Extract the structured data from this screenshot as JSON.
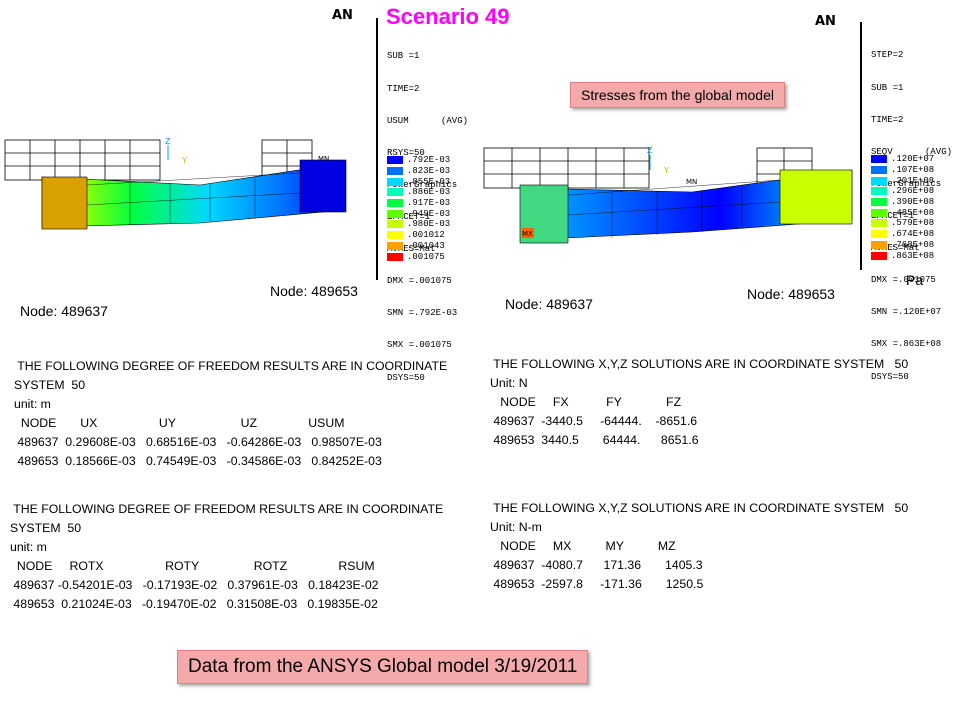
{
  "title": "Scenario 49",
  "left_plot": {
    "header_mark": "AN",
    "legend_lines": [
      "SUB =1",
      "TIME=2",
      "USUM      (AVG)",
      "RSYS=50",
      "PowerGraphics",
      "EFACET=1",
      "AVRES=Mat",
      "DMX =.001075",
      "SMN =.792E-03",
      "SMX =.001075",
      "DSYS=50"
    ],
    "scale": [
      ".792E-03",
      ".823E-03",
      ".855E-03",
      ".886E-03",
      ".917E-03",
      ".949E-03",
      ".980E-03",
      ".001012",
      ".001043",
      ".001075"
    ],
    "node_labels": [
      "Node: 489653",
      "Node: 489637"
    ],
    "model_tags": [
      "MN"
    ]
  },
  "right_plot": {
    "header_mark": "AN",
    "legend_lines": [
      "STEP=2",
      "SUB =1",
      "TIME=2",
      "SEQV      (AVG)",
      "PowerGraphics",
      "EFACET=1",
      "AVRES=Mat",
      "DMX =.001075",
      "SMN =.120E+07",
      "SMX =.863E+08",
      "DSYS=50"
    ],
    "scale": [
      ".120E+07",
      ".107E+08",
      ".201E+08",
      ".296E+08",
      ".390E+08",
      ".485E+08",
      ".579E+08",
      ".674E+08",
      ".768E+08",
      ".863E+08"
    ],
    "unit": "Pa",
    "callout": "Stresses from the global model",
    "node_labels": [
      "Node: 489637",
      "Node: 489653"
    ],
    "model_tags": [
      "MN",
      "MX"
    ]
  },
  "scale_colors": [
    "#0000ff",
    "#0070ff",
    "#00d8ff",
    "#00ffb8",
    "#00ff40",
    "#60ff00",
    "#c8ff00",
    "#ffff00",
    "#ffa000",
    "#ff0000"
  ],
  "tables": {
    "dof_translation": {
      "text": " THE FOLLOWING DEGREE OF FREEDOM RESULTS ARE IN COORDINATE\nSYSTEM  50\nunit: m\n  NODE       UX                  UY                   UZ               USUM\n 489637  0.29608E-03   0.68516E-03   -0.64286E-03   0.98507E-03\n 489653  0.18566E-03   0.74549E-03   -0.34586E-03   0.84252E-03"
    },
    "dof_rotation": {
      "text": " THE FOLLOWING DEGREE OF FREEDOM RESULTS ARE IN COORDINATE\nSYSTEM  50\nunit: m\n  NODE     ROTX                  ROTY                ROTZ               RSUM\n 489637 -0.54201E-03   -0.17193E-02   0.37961E-03   0.18423E-02\n 489653  0.21024E-03   -0.19470E-02   0.31508E-03   0.19835E-02"
    },
    "forces": {
      "text": " THE FOLLOWING X,Y,Z SOLUTIONS ARE IN COORDINATE SYSTEM   50\nUnit: N\n   NODE     FX           FY             FZ\n 489637  -3440.5     -64444.    -8651.6\n 489653  3440.5       64444.      8651.6"
    },
    "moments": {
      "text": " THE FOLLOWING X,Y,Z SOLUTIONS ARE IN COORDINATE SYSTEM   50\nUnit: N-m\n   NODE     MX          MY          MZ\n 489637  -4080.7      171.36       1405.3\n 489653  -2597.8     -171.36       1250.5"
    }
  },
  "footer_callout": "Data from the ANSYS Global model 3/19/2011"
}
